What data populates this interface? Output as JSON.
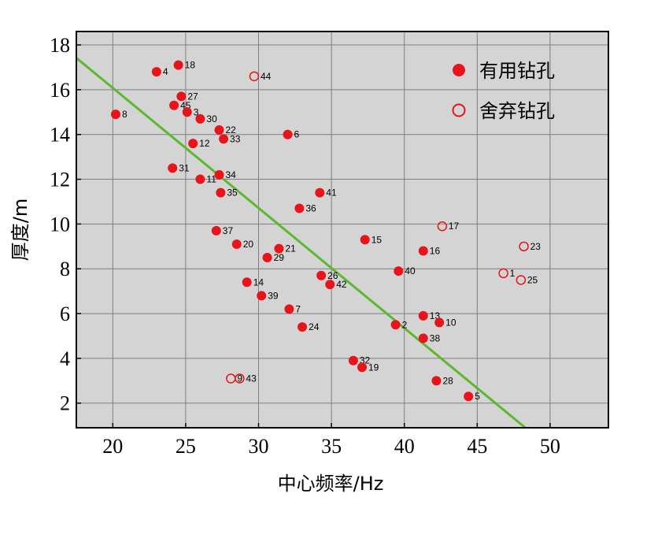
{
  "chart_data": {
    "type": "scatter",
    "xlabel": "中心频率/Hz",
    "ylabel": "厚度/m",
    "xlim": [
      17.5,
      54
    ],
    "ylim": [
      0.9,
      18.6
    ],
    "xticks": [
      20,
      25,
      30,
      35,
      40,
      45,
      50
    ],
    "yticks": [
      2,
      4,
      6,
      8,
      10,
      12,
      14,
      16,
      18
    ],
    "grid": true,
    "legend_position": "top-right",
    "colors": {
      "plot_bg": "#d4d4d4",
      "grid": "#7f7f7f",
      "point": "#e8141a",
      "fit_line": "#5cb82e"
    },
    "series": [
      {
        "name": "有用钻孔",
        "marker": "filled-circle",
        "points": [
          {
            "label": "4",
            "x": 23.0,
            "y": 16.8
          },
          {
            "label": "18",
            "x": 24.5,
            "y": 17.1
          },
          {
            "label": "27",
            "x": 24.7,
            "y": 15.7
          },
          {
            "label": "45",
            "x": 24.2,
            "y": 15.3
          },
          {
            "label": "3",
            "x": 25.1,
            "y": 15.0
          },
          {
            "label": "30",
            "x": 26.0,
            "y": 14.7
          },
          {
            "label": "8",
            "x": 20.2,
            "y": 14.9
          },
          {
            "label": "22",
            "x": 27.3,
            "y": 14.2
          },
          {
            "label": "33",
            "x": 27.6,
            "y": 13.8
          },
          {
            "label": "12",
            "x": 25.5,
            "y": 13.6
          },
          {
            "label": "6",
            "x": 32.0,
            "y": 14.0
          },
          {
            "label": "31",
            "x": 24.1,
            "y": 12.5
          },
          {
            "label": "34",
            "x": 27.3,
            "y": 12.2
          },
          {
            "label": "11",
            "x": 26.0,
            "y": 12.0
          },
          {
            "label": "35",
            "x": 27.4,
            "y": 11.4
          },
          {
            "label": "41",
            "x": 34.2,
            "y": 11.4
          },
          {
            "label": "36",
            "x": 32.8,
            "y": 10.7
          },
          {
            "label": "37",
            "x": 27.1,
            "y": 9.7
          },
          {
            "label": "20",
            "x": 28.5,
            "y": 9.1
          },
          {
            "label": "21",
            "x": 31.4,
            "y": 8.9
          },
          {
            "label": "29",
            "x": 30.6,
            "y": 8.5
          },
          {
            "label": "15",
            "x": 37.3,
            "y": 9.3
          },
          {
            "label": "16",
            "x": 41.3,
            "y": 8.8
          },
          {
            "label": "40",
            "x": 39.6,
            "y": 7.9
          },
          {
            "label": "26",
            "x": 34.3,
            "y": 7.7
          },
          {
            "label": "42",
            "x": 34.9,
            "y": 7.3
          },
          {
            "label": "14",
            "x": 29.2,
            "y": 7.4
          },
          {
            "label": "39",
            "x": 30.2,
            "y": 6.8
          },
          {
            "label": "7",
            "x": 32.1,
            "y": 6.2
          },
          {
            "label": "24",
            "x": 33.0,
            "y": 5.4
          },
          {
            "label": "2",
            "x": 39.4,
            "y": 5.5
          },
          {
            "label": "13",
            "x": 41.3,
            "y": 5.9
          },
          {
            "label": "10",
            "x": 42.4,
            "y": 5.6
          },
          {
            "label": "38",
            "x": 41.3,
            "y": 4.9
          },
          {
            "label": "32",
            "x": 36.5,
            "y": 3.9
          },
          {
            "label": "19",
            "x": 37.1,
            "y": 3.6
          },
          {
            "label": "28",
            "x": 42.2,
            "y": 3.0
          },
          {
            "label": "5",
            "x": 44.4,
            "y": 2.3
          }
        ]
      },
      {
        "name": "舍弃钻孔",
        "marker": "open-circle",
        "points": [
          {
            "label": "44",
            "x": 29.7,
            "y": 16.6
          },
          {
            "label": "17",
            "x": 42.6,
            "y": 9.9
          },
          {
            "label": "23",
            "x": 48.2,
            "y": 9.0
          },
          {
            "label": "1",
            "x": 46.8,
            "y": 7.8
          },
          {
            "label": "25",
            "x": 48.0,
            "y": 7.5
          },
          {
            "label": "9",
            "x": 28.1,
            "y": 3.1
          },
          {
            "label": "43",
            "x": 28.7,
            "y": 3.1
          }
        ]
      }
    ],
    "fit_line": {
      "x": [
        17.5,
        48.3
      ],
      "y": [
        17.42,
        0.9
      ]
    }
  }
}
